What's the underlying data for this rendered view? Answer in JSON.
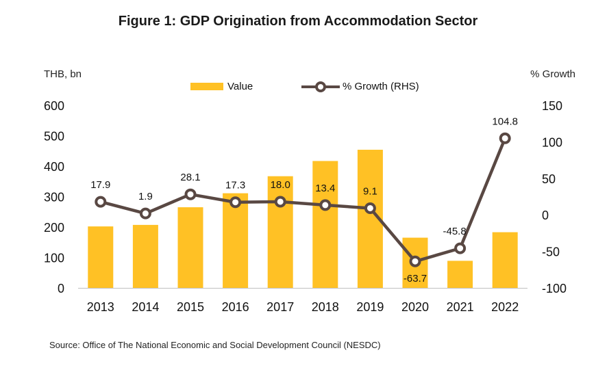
{
  "title": "Figure 1: GDP Origination from Accommodation Sector",
  "left_unit": "THB, bn",
  "right_unit": "% Growth",
  "source": "Source: Office of The National Economic and Social Development Council (NESDC)",
  "legend": {
    "value_label": "Value",
    "growth_label": "% Growth (RHS)"
  },
  "colors": {
    "bar": "#FFC125",
    "line": "#594843",
    "marker_fill": "#ffffff"
  },
  "chart_data": {
    "type": "bar",
    "categories": [
      "2013",
      "2014",
      "2015",
      "2016",
      "2017",
      "2018",
      "2019",
      "2020",
      "2021",
      "2022"
    ],
    "series": [
      {
        "name": "Value",
        "type": "bar",
        "axis": "left",
        "values": [
          202,
          207,
          265,
          311,
          367,
          417,
          454,
          165,
          89,
          183
        ]
      },
      {
        "name": "% Growth (RHS)",
        "type": "line",
        "axis": "right",
        "values": [
          17.9,
          1.9,
          28.1,
          17.3,
          18.0,
          13.4,
          9.1,
          -63.7,
          -45.8,
          104.8
        ],
        "labels": [
          "17.9",
          "1.9",
          "28.1",
          "17.3",
          "18.0",
          "13.4",
          "9.1",
          "-63.7",
          "-45.8",
          "104.8"
        ]
      }
    ],
    "y_left": {
      "lim": [
        0,
        600
      ],
      "ticks": [
        "0",
        "100",
        "200",
        "300",
        "400",
        "500",
        "600"
      ]
    },
    "y_right": {
      "lim": [
        -100,
        150
      ],
      "ticks": [
        "-100",
        "-50",
        "0",
        "50",
        "100",
        "150"
      ]
    },
    "grid": false,
    "legend_position": "top-center"
  }
}
